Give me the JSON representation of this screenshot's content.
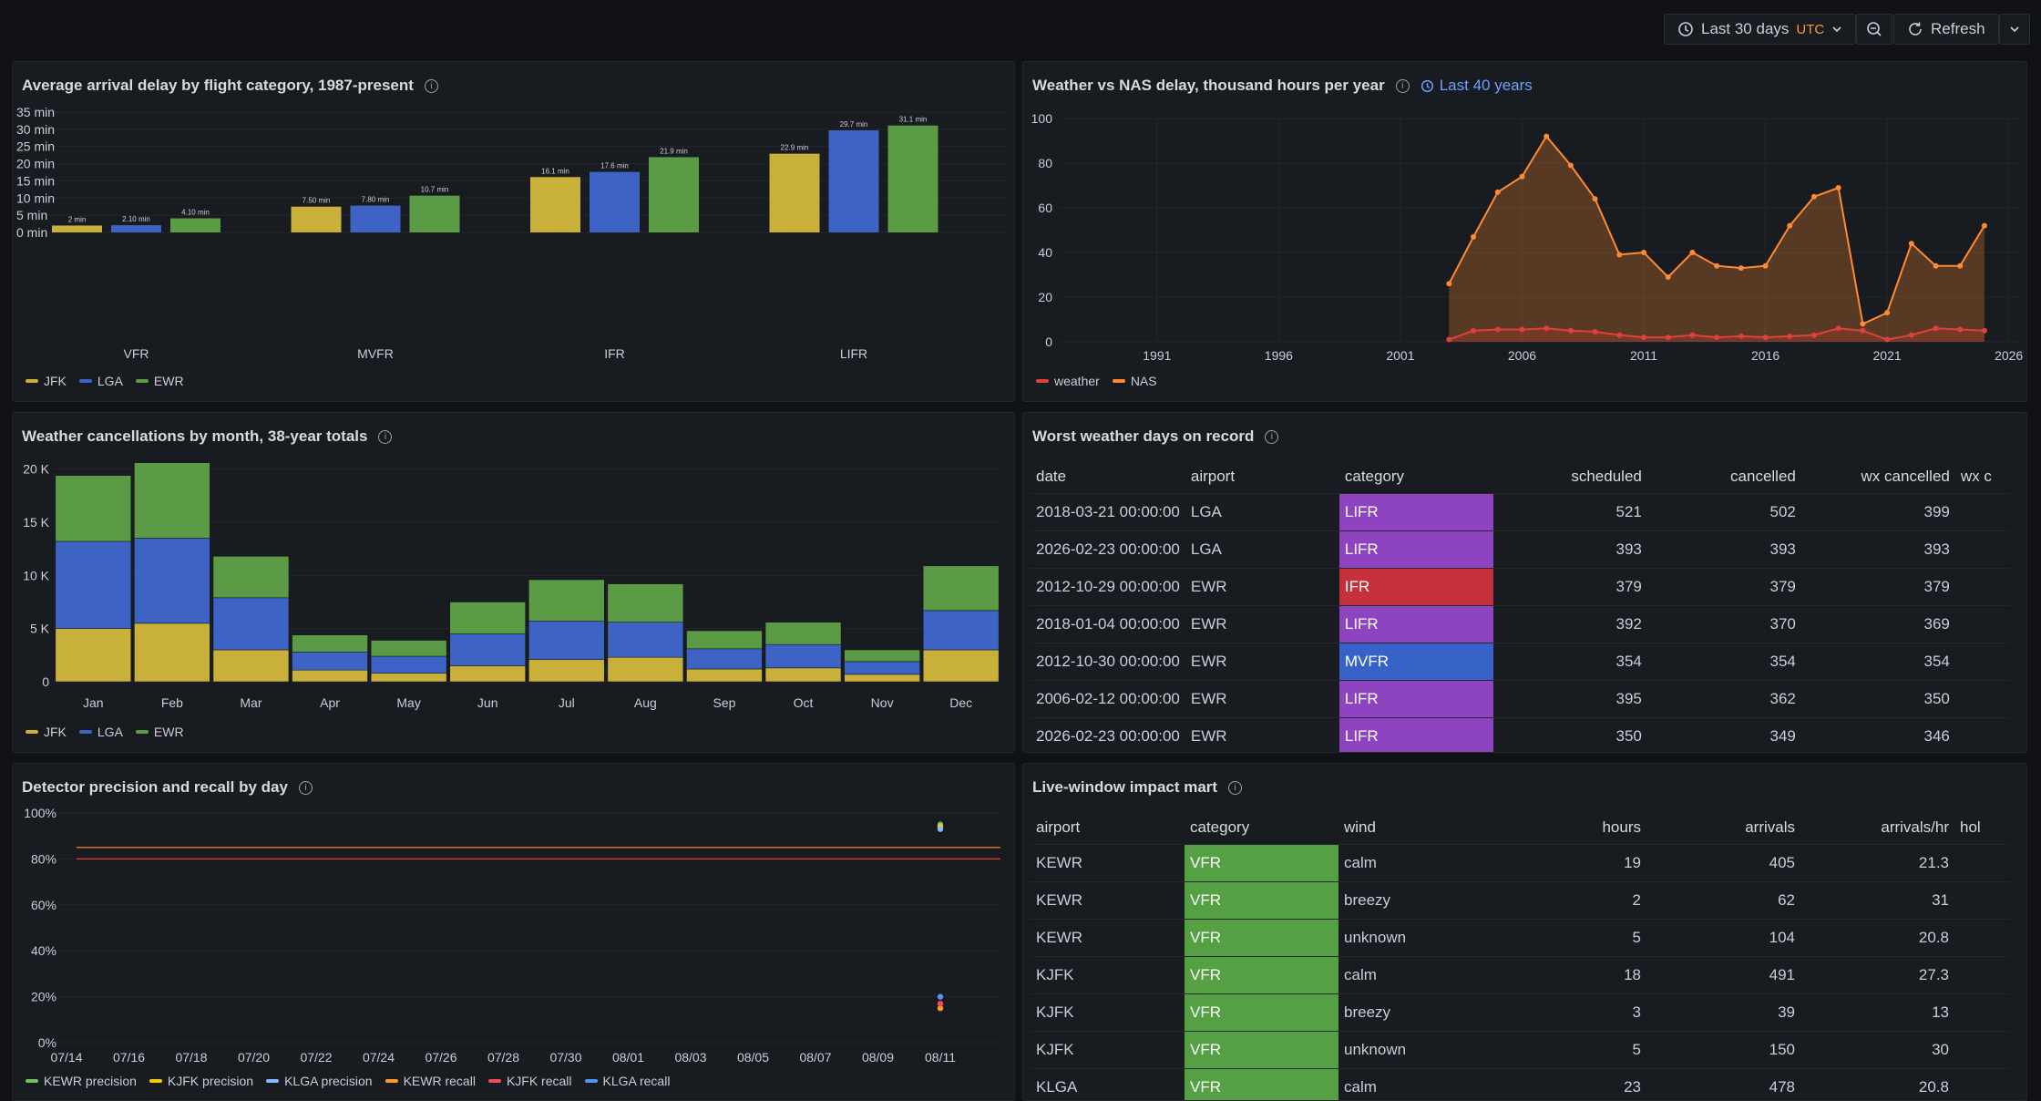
{
  "toolbar": {
    "time_range": "Last 30 days",
    "timezone": "UTC",
    "refresh_label": "Refresh",
    "icons": [
      "clock-icon",
      "chevron-down-icon",
      "zoom-out-icon",
      "refresh-icon",
      "chevron-down-icon"
    ]
  },
  "colors": {
    "jfk": "#c9b03b",
    "lga": "#3d63c4",
    "ewr": "#5b9b45",
    "weather": "#e0403c",
    "nas": "#ff8a33"
  },
  "panels": {
    "arrival_delay": {
      "title": "Average arrival delay by flight category, 1987-present",
      "chart_data": {
        "type": "bar",
        "categories": [
          "VFR",
          "MVFR",
          "IFR",
          "LIFR"
        ],
        "series": [
          {
            "name": "JFK",
            "values": [
              2,
              7.5,
              16.1,
              22.9
            ],
            "labels": [
              "2 min",
              "7.50 min",
              "16.1 min",
              "22.9 min"
            ]
          },
          {
            "name": "LGA",
            "values": [
              2.1,
              7.8,
              17.6,
              29.7
            ],
            "labels": [
              "2.10 min",
              "7.80 min",
              "17.6 min",
              "29.7 min"
            ]
          },
          {
            "name": "EWR",
            "values": [
              4.1,
              10.7,
              21.9,
              31.1
            ],
            "labels": [
              "4.10 min",
              "10.7 min",
              "21.9 min",
              "31.1 min"
            ]
          }
        ],
        "yticks": [
          "0 min",
          "5 min",
          "10 min",
          "15 min",
          "20 min",
          "25 min",
          "30 min",
          "35 min"
        ],
        "ylim": [
          0,
          35
        ]
      }
    },
    "weather_nas": {
      "title": "Weather vs NAS delay, thousand hours per year",
      "time_badge": "Last 40 years",
      "chart_data": {
        "type": "area",
        "x": [
          2003,
          2004,
          2005,
          2006,
          2007,
          2008,
          2009,
          2010,
          2011,
          2012,
          2013,
          2014,
          2015,
          2016,
          2017,
          2018,
          2019,
          2020,
          2021,
          2022,
          2023,
          2024,
          2025
        ],
        "series": [
          {
            "name": "weather",
            "values": [
              1,
              5,
              5.5,
              5.5,
              6,
              5,
              4.5,
              3,
              2,
              2,
              3,
              2,
              2.5,
              2,
              2.5,
              3,
              6,
              5,
              1,
              3,
              6,
              5.5,
              5
            ]
          },
          {
            "name": "NAS",
            "values": [
              26,
              47,
              67,
              74,
              92,
              79,
              64,
              39,
              40,
              29,
              40,
              34,
              33,
              34,
              52,
              65,
              69,
              8,
              13,
              44,
              34,
              34,
              52
            ]
          }
        ],
        "xticks": [
          "1991",
          "1996",
          "2001",
          "2006",
          "2011",
          "2016",
          "2021",
          "2026"
        ],
        "xlim": [
          1987,
          2026.5
        ],
        "yticks": [
          "0",
          "20",
          "40",
          "60",
          "80",
          "100"
        ],
        "ylim": [
          0,
          100
        ]
      }
    },
    "cancellations": {
      "title": "Weather cancellations by month, 38-year totals",
      "chart_data": {
        "type": "bar",
        "stacked": true,
        "categories": [
          "Jan",
          "Feb",
          "Mar",
          "Apr",
          "May",
          "Jun",
          "Jul",
          "Aug",
          "Sep",
          "Oct",
          "Nov",
          "Dec"
        ],
        "series": [
          {
            "name": "JFK",
            "values": [
              5000,
              5500,
              3000,
              1100,
              800,
              1500,
              2100,
              2300,
              1200,
              1300,
              700,
              3000
            ]
          },
          {
            "name": "LGA",
            "values": [
              8200,
              8000,
              4900,
              1700,
              1600,
              3000,
              3600,
              3300,
              1900,
              2200,
              1200,
              3700
            ]
          },
          {
            "name": "EWR",
            "values": [
              6200,
              7100,
              3900,
              1600,
              1500,
              3000,
              3900,
              3600,
              1700,
              2100,
              1100,
              4200
            ]
          }
        ],
        "yticks": [
          "0",
          "5 K",
          "10 K",
          "15 K",
          "20 K"
        ],
        "ylim": [
          0,
          21000
        ]
      }
    },
    "worst_days": {
      "title": "Worst weather days on record",
      "columns": [
        "date",
        "airport",
        "category",
        "scheduled",
        "cancelled",
        "wx cancelled",
        "wx c"
      ],
      "rows": [
        [
          "2018-03-21 00:00:00",
          "LGA",
          "LIFR",
          "521",
          "502",
          "399"
        ],
        [
          "2026-02-23 00:00:00",
          "LGA",
          "LIFR",
          "393",
          "393",
          "393"
        ],
        [
          "2012-10-29 00:00:00",
          "EWR",
          "IFR",
          "379",
          "379",
          "379"
        ],
        [
          "2018-01-04 00:00:00",
          "EWR",
          "LIFR",
          "392",
          "370",
          "369"
        ],
        [
          "2012-10-30 00:00:00",
          "EWR",
          "MVFR",
          "354",
          "354",
          "354"
        ],
        [
          "2006-02-12 00:00:00",
          "EWR",
          "LIFR",
          "395",
          "362",
          "350"
        ],
        [
          "2026-02-23 00:00:00",
          "EWR",
          "LIFR",
          "350",
          "349",
          "346"
        ]
      ],
      "category_colors": {
        "LIFR": "#8e44c0",
        "IFR": "#c4313a",
        "MVFR": "#3762c8",
        "VFR": "#56a044"
      }
    },
    "detector": {
      "title": "Detector precision and recall by day",
      "chart_data": {
        "type": "scatter",
        "xticks": [
          "07/14",
          "07/16",
          "07/18",
          "07/20",
          "07/22",
          "07/24",
          "07/26",
          "07/28",
          "07/30",
          "08/01",
          "08/03",
          "08/05",
          "08/07",
          "08/09",
          "08/11"
        ],
        "yticks": [
          "0%",
          "20%",
          "40%",
          "60%",
          "80%",
          "100%"
        ],
        "ylim": [
          0,
          100
        ],
        "thresholds": [
          {
            "value": 85,
            "color": "#ff9830"
          },
          {
            "value": 80,
            "color": "#e0403c"
          }
        ],
        "series": [
          {
            "name": "KEWR precision",
            "color": "#73bf69",
            "points": [
              {
                "x": "08/11",
                "y": 95
              }
            ]
          },
          {
            "name": "KJFK precision",
            "color": "#f2cc0c",
            "points": [
              {
                "x": "08/11",
                "y": 94
              }
            ]
          },
          {
            "name": "KLGA precision",
            "color": "#8ab8ff",
            "points": [
              {
                "x": "08/11",
                "y": 93
              }
            ]
          },
          {
            "name": "KEWR recall",
            "color": "#ff9830",
            "points": [
              {
                "x": "08/11",
                "y": 15
              }
            ]
          },
          {
            "name": "KJFK recall",
            "color": "#f2495c",
            "points": [
              {
                "x": "08/11",
                "y": 17
              }
            ]
          },
          {
            "name": "KLGA recall",
            "color": "#5794f2",
            "points": [
              {
                "x": "08/11",
                "y": 20
              }
            ]
          }
        ]
      }
    },
    "live_window": {
      "title": "Live-window impact mart",
      "columns": [
        "airport",
        "category",
        "wind",
        "hours",
        "arrivals",
        "arrivals/hr",
        "hol"
      ],
      "rows": [
        [
          "KEWR",
          "VFR",
          "calm",
          "19",
          "405",
          "21.3"
        ],
        [
          "KEWR",
          "VFR",
          "breezy",
          "2",
          "62",
          "31"
        ],
        [
          "KEWR",
          "VFR",
          "unknown",
          "5",
          "104",
          "20.8"
        ],
        [
          "KJFK",
          "VFR",
          "calm",
          "18",
          "491",
          "27.3"
        ],
        [
          "KJFK",
          "VFR",
          "breezy",
          "3",
          "39",
          "13"
        ],
        [
          "KJFK",
          "VFR",
          "unknown",
          "5",
          "150",
          "30"
        ],
        [
          "KLGA",
          "VFR",
          "calm",
          "23",
          "478",
          "20.8"
        ]
      ]
    }
  }
}
